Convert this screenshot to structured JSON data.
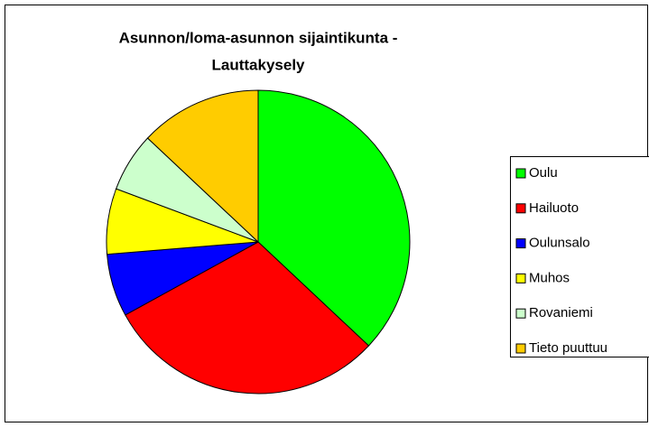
{
  "chart_data": {
    "type": "pie",
    "title": [
      "Asunnon/loma-asunnon sijaintikunta -",
      "Lauttakysely"
    ],
    "categories": [
      "Oulu",
      "Hailuoto",
      "Oulunsalo",
      "Muhos",
      "Rovaniemi",
      "Tieto puuttuu"
    ],
    "values": [
      37,
      30,
      6.7,
      7,
      6.3,
      13
    ],
    "colors": [
      "#00ff00",
      "#ff0000",
      "#0000ff",
      "#ffff00",
      "#ccffcc",
      "#ffcc00"
    ],
    "legend": "right"
  }
}
